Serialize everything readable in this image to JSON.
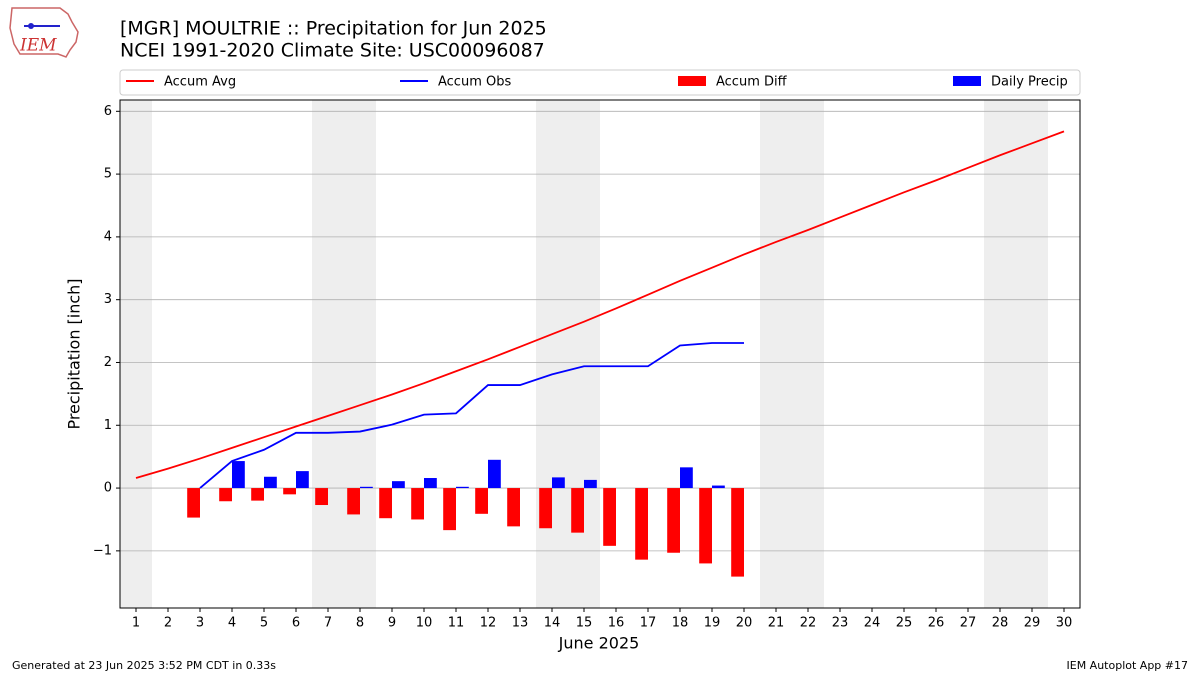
{
  "chart_data": {
    "type": "bar-line",
    "title": "[MGR] MOULTRIE :: Precipitation for Jun 2025",
    "subtitle": "NCEI 1991-2020 Climate Site: USC00096087",
    "logo_text": "IEM",
    "xlabel": "June 2025",
    "ylabel": "Precipitation [inch]",
    "footer_left": "Generated at 23 Jun 2025 3:52 PM CDT in 0.33s",
    "footer_right": "IEM Autoplot App #17",
    "x": [
      1,
      2,
      3,
      4,
      5,
      6,
      7,
      8,
      9,
      10,
      11,
      12,
      13,
      14,
      15,
      16,
      17,
      18,
      19,
      20,
      21,
      22,
      23,
      24,
      25,
      26,
      27,
      28,
      29,
      30
    ],
    "xlim": [
      0.5,
      30.5
    ],
    "xticks": [
      1,
      2,
      3,
      4,
      5,
      6,
      7,
      8,
      9,
      10,
      11,
      12,
      13,
      14,
      15,
      16,
      17,
      18,
      19,
      20,
      21,
      22,
      23,
      24,
      25,
      26,
      27,
      28,
      29,
      30
    ],
    "ylim": [
      -1.91,
      6.18
    ],
    "yticks": [
      {
        "value": -1,
        "label": "−1"
      },
      0,
      1,
      2,
      3,
      4,
      5,
      6
    ],
    "grid": true,
    "shaded_spans": [
      [
        0.5,
        1.5
      ],
      [
        6.5,
        8.5
      ],
      [
        13.5,
        15.5
      ],
      [
        20.5,
        22.5
      ],
      [
        27.5,
        29.5
      ]
    ],
    "shade_color": "#eeeeee",
    "series": [
      {
        "name": "Accum Avg",
        "kind": "line",
        "color": "#ff0000",
        "values": [
          0.16,
          0.31,
          0.47,
          0.64,
          0.81,
          0.98,
          1.15,
          1.32,
          1.49,
          1.67,
          1.86,
          2.05,
          2.25,
          2.45,
          2.65,
          2.86,
          3.08,
          3.3,
          3.51,
          3.72,
          3.92,
          4.11,
          4.31,
          4.51,
          4.71,
          4.9,
          5.1,
          5.3,
          5.49,
          5.68
        ]
      },
      {
        "name": "Accum Obs",
        "kind": "line",
        "color": "#0000ff",
        "values": [
          null,
          null,
          0.0,
          0.43,
          0.61,
          0.88,
          0.88,
          0.9,
          1.01,
          1.17,
          1.19,
          1.64,
          1.64,
          1.81,
          1.94,
          1.94,
          1.94,
          2.27,
          2.31,
          2.31,
          null,
          null,
          null,
          null,
          null,
          null,
          null,
          null,
          null,
          null
        ]
      },
      {
        "name": "Accum Diff",
        "kind": "bar",
        "offset": -0.2,
        "color": "#ff0000",
        "values": [
          null,
          null,
          -0.47,
          -0.21,
          -0.2,
          -0.1,
          -0.27,
          -0.42,
          -0.48,
          -0.5,
          -0.67,
          -0.41,
          -0.61,
          -0.64,
          -0.71,
          -0.92,
          -1.14,
          -1.03,
          -1.2,
          -1.41,
          null,
          null,
          null,
          null,
          null,
          null,
          null,
          null,
          null,
          null
        ]
      },
      {
        "name": "Daily Precip",
        "kind": "bar",
        "offset": 0.2,
        "color": "#0000ff",
        "values": [
          null,
          null,
          0,
          0.43,
          0.18,
          0.27,
          0,
          0.02,
          0.11,
          0.16,
          0.02,
          0.45,
          0,
          0.17,
          0.13,
          0,
          0,
          0.33,
          0.04,
          0,
          null,
          null,
          null,
          null,
          null,
          null,
          null,
          null,
          null,
          null
        ]
      }
    ]
  }
}
